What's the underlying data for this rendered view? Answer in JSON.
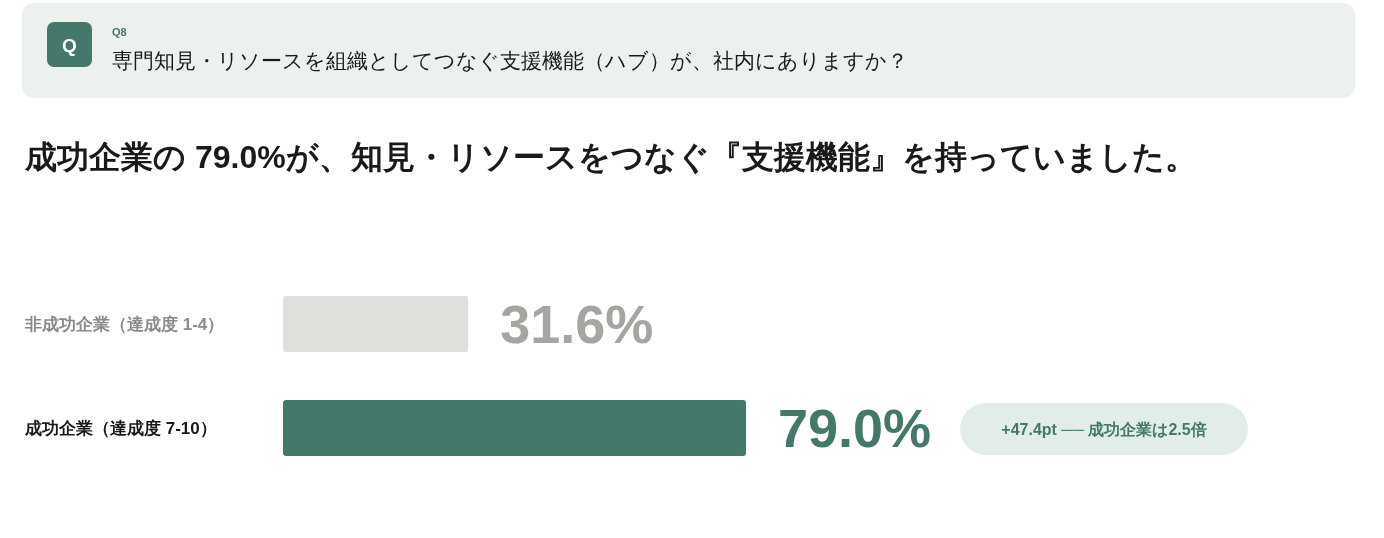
{
  "chart_data": {
    "type": "bar",
    "orientation": "horizontal",
    "title": "成功企業の 79.0%が、知見・リソースをつなぐ『支援機能』を持っていました。",
    "annotations": [
      "Q",
      "Q8",
      "専門知見・リソースを組織としてつなぐ支援機能（ハブ）が、社内にありますか？",
      "+47.4pt ── 成功企業は2.5倍"
    ],
    "categories": [
      "非成功企業（達成度 1-4）",
      "成功企業（達成度 7-10）"
    ],
    "values": [
      31.6,
      79.0
    ],
    "colors": [
      "#e0dfdb",
      "#44786a"
    ],
    "value_labels": [
      "31.6%",
      "79.0%"
    ]
  }
}
